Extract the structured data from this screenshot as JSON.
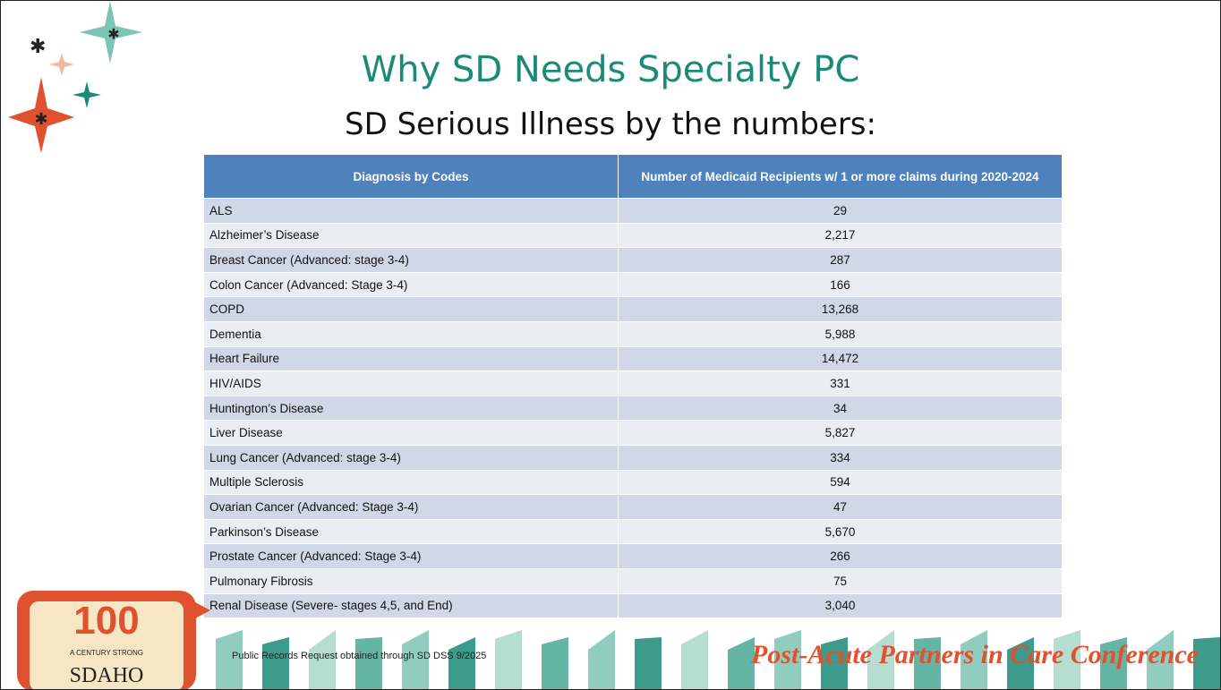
{
  "header": {
    "title": "Why SD Needs Specialty PC",
    "subtitle": "SD Serious Illness by the numbers:"
  },
  "table": {
    "columns": [
      "Diagnosis by Codes",
      "Number of Medicaid Recipients w/ 1 or more claims during 2020-2024"
    ],
    "rows": [
      [
        "ALS",
        "29"
      ],
      [
        "Alzheimer’s Disease",
        "2,217"
      ],
      [
        "Breast Cancer (Advanced: stage 3-4)",
        "287"
      ],
      [
        "Colon Cancer (Advanced: Stage 3-4)",
        "166"
      ],
      [
        "COPD",
        "13,268"
      ],
      [
        "Dementia",
        "5,988"
      ],
      [
        "Heart Failure",
        "14,472"
      ],
      [
        "HIV/AIDS",
        "331"
      ],
      [
        "Huntington’s Disease",
        "34"
      ],
      [
        "Liver Disease",
        "5,827"
      ],
      [
        "Lung Cancer (Advanced: stage 3-4)",
        "334"
      ],
      [
        "Multiple Sclerosis",
        "594"
      ],
      [
        "Ovarian Cancer (Advanced: Stage 3-4)",
        "47"
      ],
      [
        "Parkinson’s Disease",
        "5,670"
      ],
      [
        "Prostate Cancer (Advanced: Stage 3-4)",
        "266"
      ],
      [
        "Pulmonary Fibrosis",
        "75"
      ],
      [
        "Renal Disease (Severe- stages 4,5, and End)",
        "3,040"
      ]
    ]
  },
  "footer": {
    "source": "Public Records Request obtained through SD DSS 9/2025",
    "conference": "Post-Acute Partners in Care Conference",
    "logo": {
      "number": "100",
      "tagline": "A CENTURY STRONG",
      "name": "SDAHO"
    }
  }
}
